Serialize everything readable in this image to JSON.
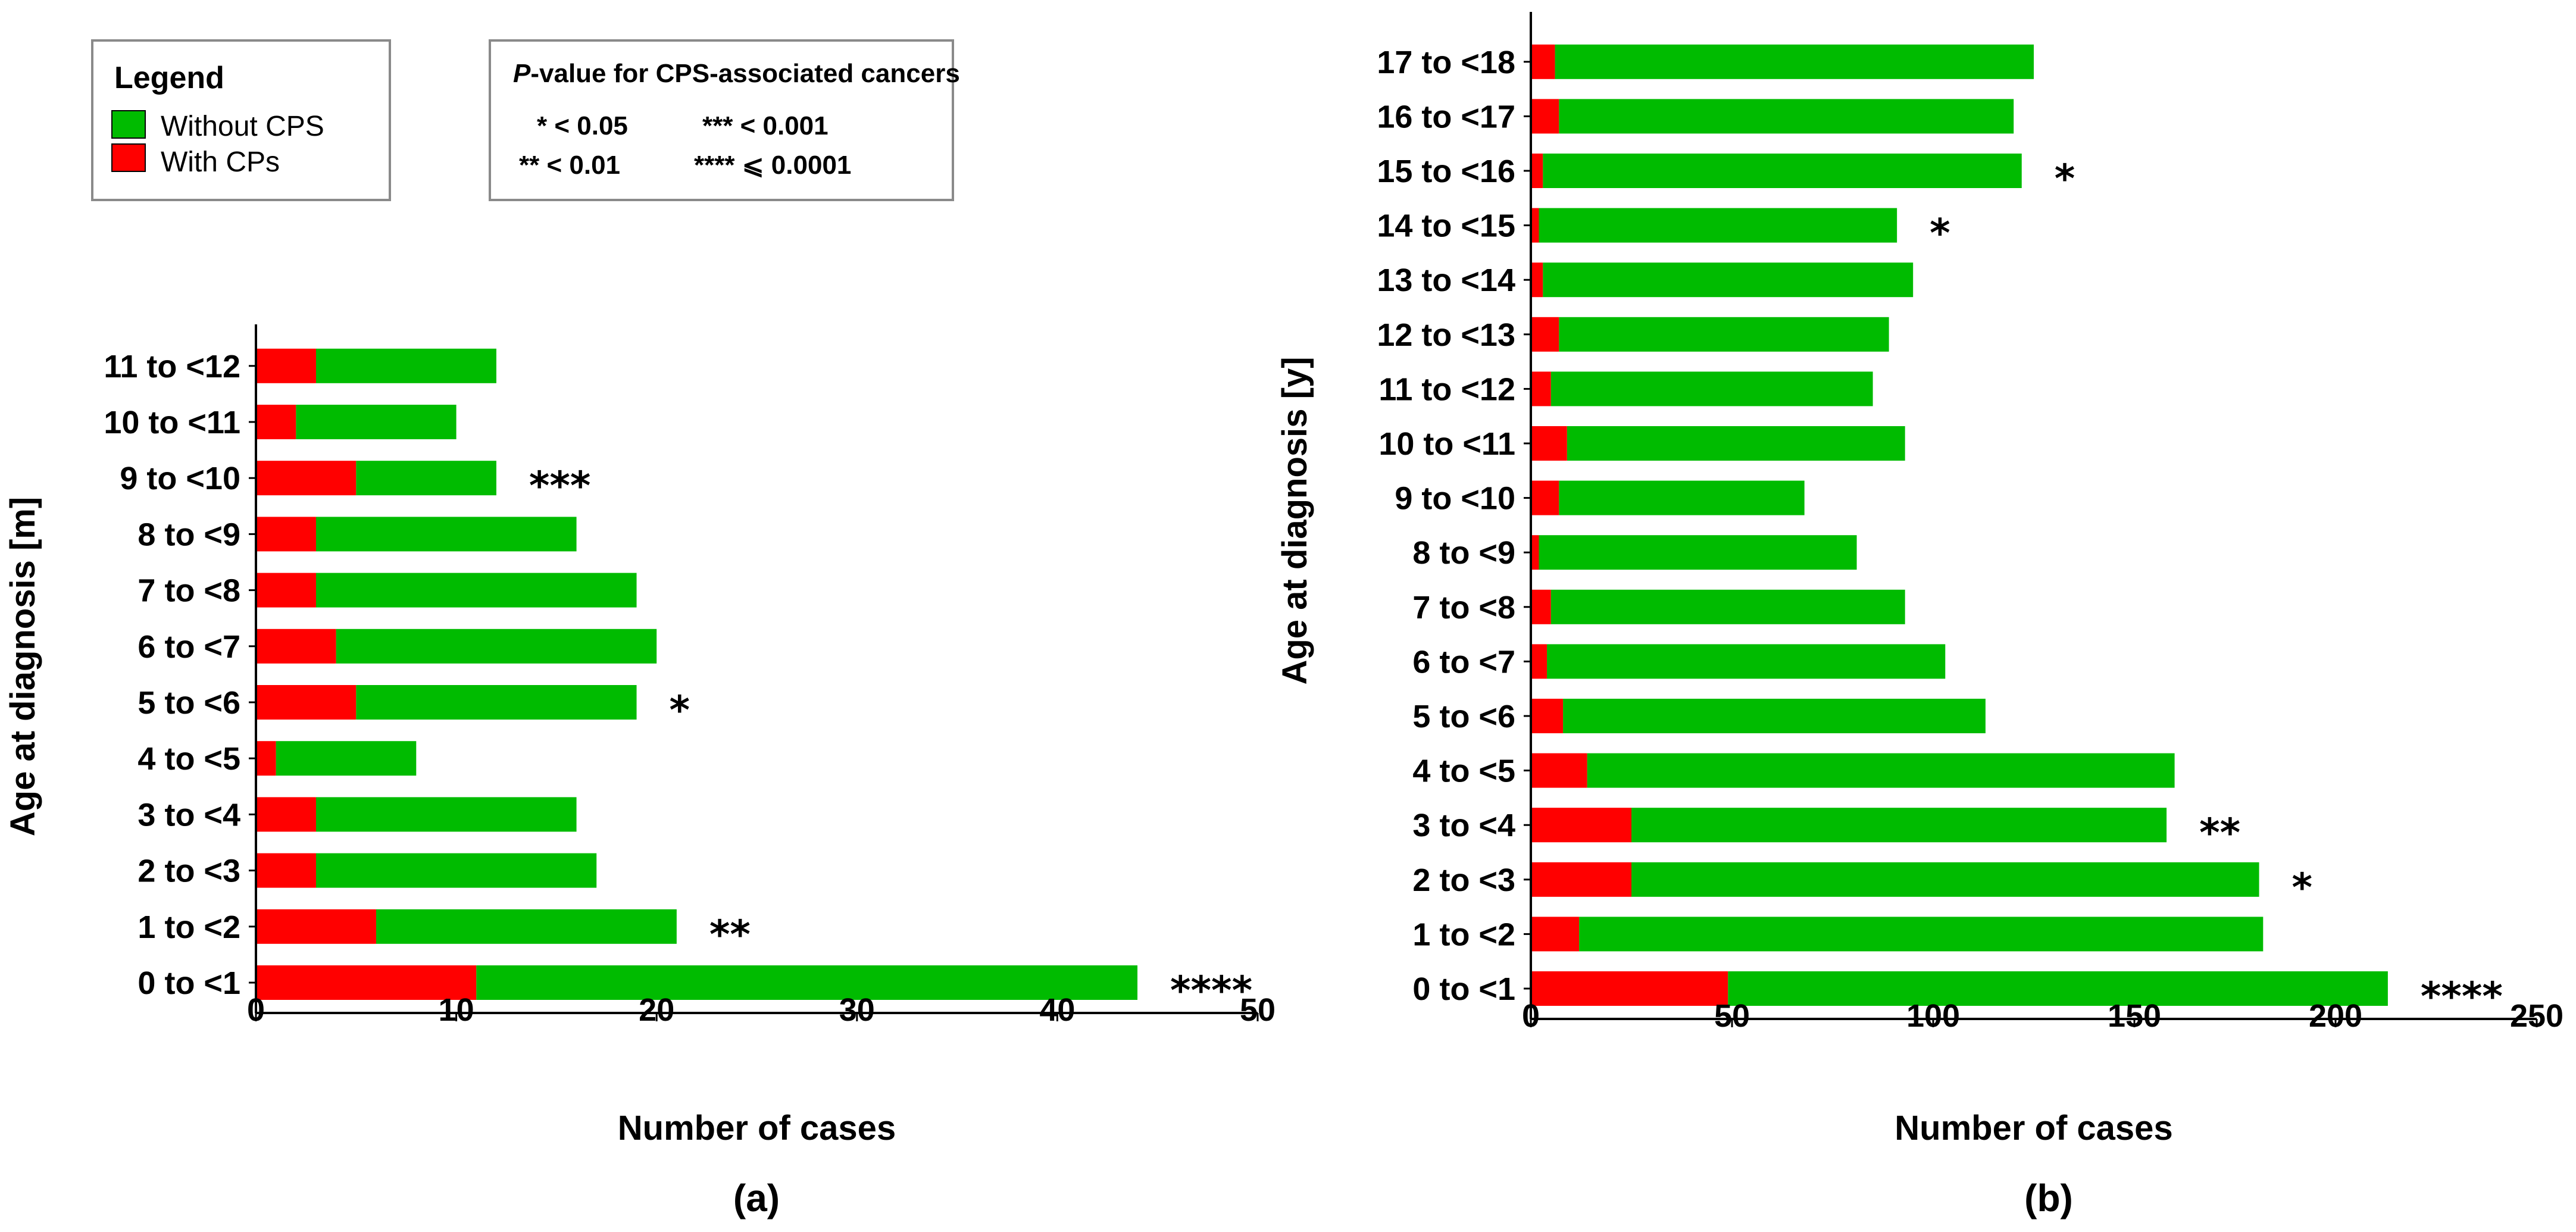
{
  "legend": {
    "title": "Legend",
    "items": [
      {
        "label": "Without CPS",
        "color": "#00bb00"
      },
      {
        "label": "With CPs",
        "color": "#ff0000"
      }
    ]
  },
  "pvalue_box": {
    "title_italic": "P",
    "title_rest": "-value for CPS-associated cancers",
    "entries": [
      "* < 0.05",
      "*** < 0.001",
      "** < 0.01",
      "**** ⩽ 0.0001"
    ]
  },
  "chart_data": [
    {
      "type": "bar",
      "orientation": "horizontal",
      "stacked": true,
      "panel_label": "(a)",
      "xlabel": "Number of cases",
      "ylabel": "Age at diagnosis [m]",
      "xlim": [
        0,
        50
      ],
      "xticks": [
        0,
        10,
        20,
        30,
        40,
        50
      ],
      "categories": [
        "0 to <1",
        "1 to <2",
        "2 to <3",
        "3 to <4",
        "4 to <5",
        "5 to <6",
        "6 to <7",
        "7 to <8",
        "8 to <9",
        "9 to <10",
        "10 to <11",
        "11 to <12"
      ],
      "series": [
        {
          "name": "With CPs",
          "color": "#ff0000",
          "values": [
            11,
            6,
            3,
            3,
            1,
            5,
            4,
            3,
            3,
            5,
            2,
            3
          ]
        },
        {
          "name": "Without CPS",
          "color": "#00bb00",
          "values": [
            33,
            15,
            14,
            13,
            7,
            14,
            16,
            16,
            13,
            7,
            8,
            9
          ]
        }
      ],
      "annotations": [
        "****",
        "**",
        "",
        "",
        "",
        "*",
        "",
        "",
        "",
        "***",
        "",
        ""
      ]
    },
    {
      "type": "bar",
      "orientation": "horizontal",
      "stacked": true,
      "panel_label": "(b)",
      "xlabel": "Number of cases",
      "ylabel": "Age at diagnosis [y]",
      "xlim": [
        0,
        250
      ],
      "xticks": [
        0,
        50,
        100,
        150,
        200,
        250
      ],
      "categories": [
        "0 to <1",
        "1 to <2",
        "2 to <3",
        "3 to <4",
        "4 to <5",
        "5 to <6",
        "6 to <7",
        "7 to <8",
        "8 to <9",
        "9 to <10",
        "10 to <11",
        "11 to <12",
        "12 to <13",
        "13 to <14",
        "14 to <15",
        "15 to <16",
        "16 to <17",
        "17 to <18"
      ],
      "series": [
        {
          "name": "With CPs",
          "color": "#ff0000",
          "values": [
            49,
            12,
            25,
            25,
            14,
            8,
            4,
            5,
            2,
            7,
            9,
            5,
            7,
            3,
            2,
            3,
            7,
            6
          ]
        },
        {
          "name": "Without CPS",
          "color": "#00bb00",
          "values": [
            164,
            170,
            156,
            133,
            146,
            105,
            99,
            88,
            79,
            61,
            84,
            80,
            82,
            92,
            89,
            119,
            113,
            119
          ]
        }
      ],
      "annotations": [
        "****",
        "",
        "*",
        "**",
        "",
        "",
        "",
        "",
        "",
        "",
        "",
        "",
        "",
        "",
        "*",
        "*",
        "",
        ""
      ]
    }
  ]
}
